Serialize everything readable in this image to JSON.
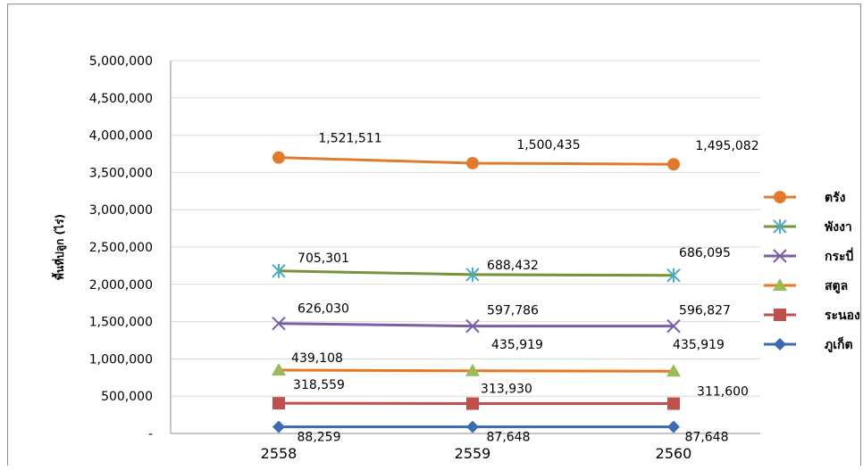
{
  "chart_data": {
    "type": "line",
    "title": "",
    "xlabel": "",
    "ylabel": "พื้นที่ปลูก (ไร่)",
    "categories": [
      "2558",
      "2559",
      "2560"
    ],
    "ylim": [
      0,
      5000000
    ],
    "y_tick_labels": [
      "-",
      "500,000",
      "1,000,000",
      "1,500,000",
      "2,000,000",
      "2,500,000",
      "3,000,000",
      "3,500,000",
      "4,000,000",
      "4,500,000",
      "5,000,000"
    ],
    "grid": "horizontal",
    "legend_position": "right",
    "series": [
      {
        "name": "ตรัง",
        "color": "#E07B2E",
        "marker": "circle",
        "values": [
          3700000,
          3625000,
          3610000
        ],
        "labels": [
          "1,521,511",
          "1,500,435",
          "1,495,082"
        ]
      },
      {
        "name": "พังงา",
        "color": "#77933C",
        "marker_color": "#4BACC6",
        "marker": "asterisk",
        "values": [
          2180000,
          2130000,
          2120000
        ],
        "labels": [
          "705,301",
          "688,432",
          "686,095"
        ]
      },
      {
        "name": "กระบี่",
        "color": "#7B5EA7",
        "marker": "x",
        "values": [
          1475000,
          1440000,
          1440000
        ],
        "labels": [
          "626,030",
          "597,786",
          "596,827"
        ]
      },
      {
        "name": "สตูล",
        "color": "#E87722",
        "marker_color": "#9BBB59",
        "marker": "triangle",
        "values": [
          850000,
          840000,
          835000
        ],
        "labels": [
          "439,108",
          "435,919",
          "435,919"
        ]
      },
      {
        "name": "ระนอง",
        "color": "#C0504D",
        "marker": "square",
        "values": [
          405000,
          400000,
          400000
        ],
        "labels": [
          "318,559",
          "313,930",
          "311,600"
        ]
      },
      {
        "name": "ภูเก็ต",
        "color": "#3D6BAF",
        "marker": "diamond",
        "values": [
          88259,
          87648,
          87648
        ],
        "labels": [
          "88,259",
          "87,648",
          "87,648"
        ]
      }
    ]
  }
}
